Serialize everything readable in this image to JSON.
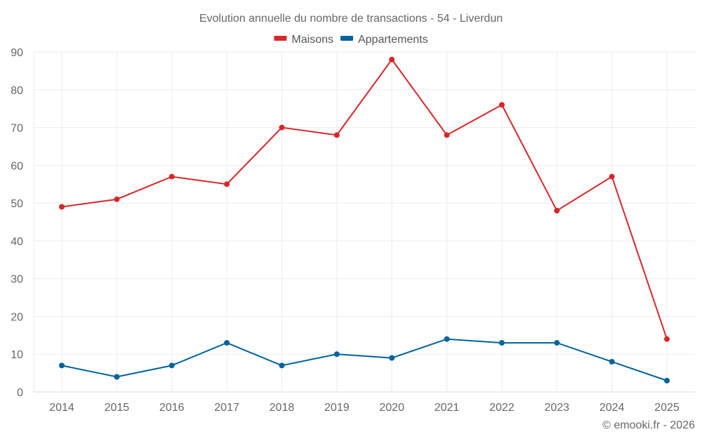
{
  "chart_data": {
    "type": "line",
    "title": "Evolution annuelle du nombre de transactions - 54 - Liverdun",
    "xlabel": "",
    "ylabel": "",
    "categories": [
      "2014",
      "2015",
      "2016",
      "2017",
      "2018",
      "2019",
      "2020",
      "2021",
      "2022",
      "2023",
      "2024",
      "2025"
    ],
    "series": [
      {
        "name": "Maisons",
        "color": "#d62728",
        "values": [
          49,
          51,
          57,
          55,
          70,
          68,
          88,
          68,
          76,
          48,
          57,
          14
        ]
      },
      {
        "name": "Appartements",
        "color": "#00629b",
        "values": [
          7,
          4,
          7,
          13,
          7,
          10,
          9,
          14,
          13,
          13,
          8,
          3
        ]
      }
    ],
    "ylim": [
      0,
      90
    ],
    "yticks": [
      0,
      10,
      20,
      30,
      40,
      50,
      60,
      70,
      80,
      90
    ],
    "grid": true,
    "legend_position": "top-center"
  },
  "credit": "© emooki.fr - 2026"
}
